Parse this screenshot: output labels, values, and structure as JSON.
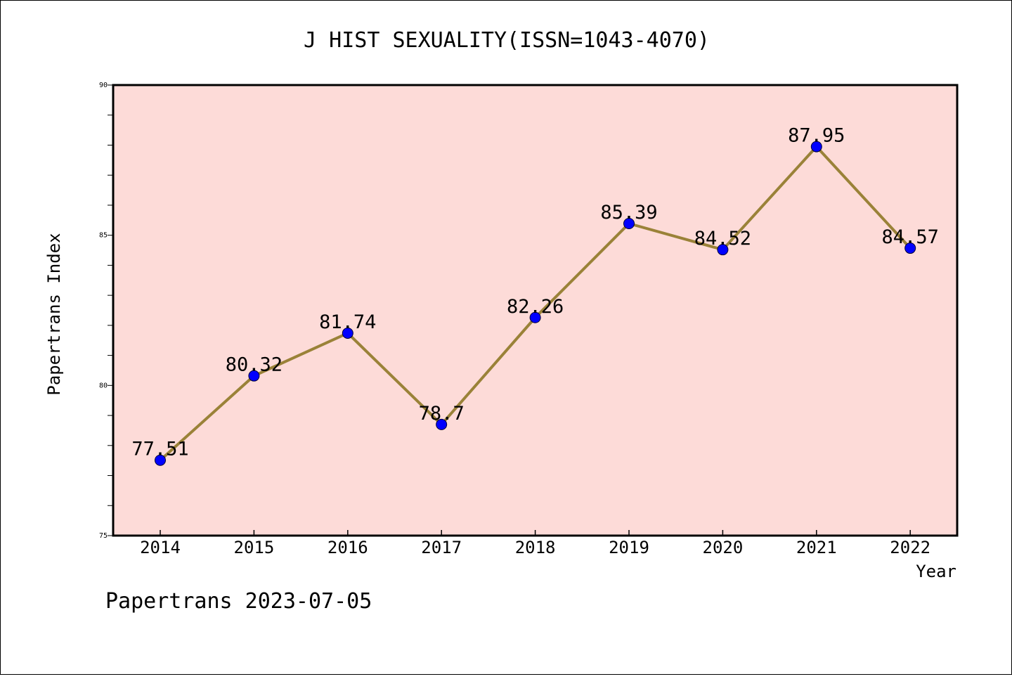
{
  "chart_data": {
    "type": "line",
    "title": "J HIST SEXUALITY(ISSN=1043-4070)",
    "xlabel": "Year",
    "ylabel": "Papertrans Index",
    "categories": [
      "2014",
      "2015",
      "2016",
      "2017",
      "2018",
      "2019",
      "2020",
      "2021",
      "2022"
    ],
    "series": [
      {
        "values": [
          77.51,
          80.32,
          81.74,
          78.7,
          82.26,
          85.39,
          84.52,
          87.95,
          84.57
        ],
        "data_labels": [
          "77.51",
          "80.32",
          "81.74",
          "78.7",
          "82.26",
          "85.39",
          "84.52",
          "87.95",
          "84.57"
        ]
      }
    ],
    "ylim": [
      75,
      90
    ],
    "yticks": [
      "75",
      "80",
      "85",
      "90"
    ],
    "grid": false,
    "legend": "none",
    "colors": {
      "plot_background": "#fddbd8",
      "line": "#9a8238",
      "marker": "#0000ff"
    }
  },
  "footer": {
    "watermark": "Papertrans 2023-07-05"
  }
}
